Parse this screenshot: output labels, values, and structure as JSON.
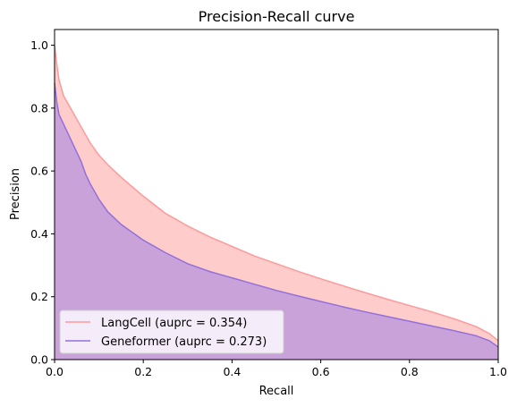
{
  "chart_data": {
    "type": "area",
    "title": "Precision-Recall curve",
    "xlabel": "Recall",
    "ylabel": "Precision",
    "xlim": [
      0.0,
      1.0
    ],
    "ylim": [
      0.0,
      1.05
    ],
    "xticks": [
      "0.0",
      "0.2",
      "0.4",
      "0.6",
      "0.8",
      "1.0"
    ],
    "yticks": [
      "0.0",
      "0.2",
      "0.4",
      "0.6",
      "0.8",
      "1.0"
    ],
    "xtick_values": [
      0.0,
      0.2,
      0.4,
      0.6,
      0.8,
      1.0
    ],
    "ytick_values": [
      0.0,
      0.2,
      0.4,
      0.6,
      0.8,
      1.0
    ],
    "grid": false,
    "legend_position": "lower-left",
    "series": [
      {
        "name": "LangCell (auprc = 0.354)",
        "line_color": "#ff9999",
        "fill_color": "#ffcccc",
        "x": [
          0.0,
          0.005,
          0.01,
          0.02,
          0.04,
          0.06,
          0.08,
          0.1,
          0.12,
          0.15,
          0.2,
          0.25,
          0.3,
          0.35,
          0.4,
          0.45,
          0.5,
          0.55,
          0.6,
          0.65,
          0.7,
          0.75,
          0.8,
          0.85,
          0.9,
          0.95,
          0.98,
          1.0
        ],
        "y": [
          1.0,
          0.94,
          0.89,
          0.84,
          0.79,
          0.74,
          0.69,
          0.65,
          0.62,
          0.58,
          0.52,
          0.465,
          0.425,
          0.39,
          0.36,
          0.33,
          0.305,
          0.28,
          0.257,
          0.235,
          0.213,
          0.192,
          0.172,
          0.152,
          0.13,
          0.105,
          0.083,
          0.06
        ]
      },
      {
        "name": "Geneformer (auprc = 0.273)",
        "line_color": "#9370db",
        "fill_color": "#c8a2d9",
        "x": [
          0.0,
          0.005,
          0.01,
          0.02,
          0.03,
          0.04,
          0.05,
          0.06,
          0.07,
          0.08,
          0.1,
          0.12,
          0.15,
          0.2,
          0.25,
          0.3,
          0.35,
          0.4,
          0.45,
          0.5,
          0.55,
          0.6,
          0.65,
          0.7,
          0.75,
          0.8,
          0.85,
          0.9,
          0.95,
          0.98,
          1.0
        ],
        "y": [
          0.88,
          0.82,
          0.78,
          0.75,
          0.72,
          0.69,
          0.66,
          0.63,
          0.59,
          0.56,
          0.51,
          0.47,
          0.43,
          0.38,
          0.34,
          0.305,
          0.28,
          0.26,
          0.24,
          0.22,
          0.202,
          0.185,
          0.168,
          0.152,
          0.137,
          0.122,
          0.107,
          0.092,
          0.076,
          0.06,
          0.04
        ]
      }
    ]
  }
}
